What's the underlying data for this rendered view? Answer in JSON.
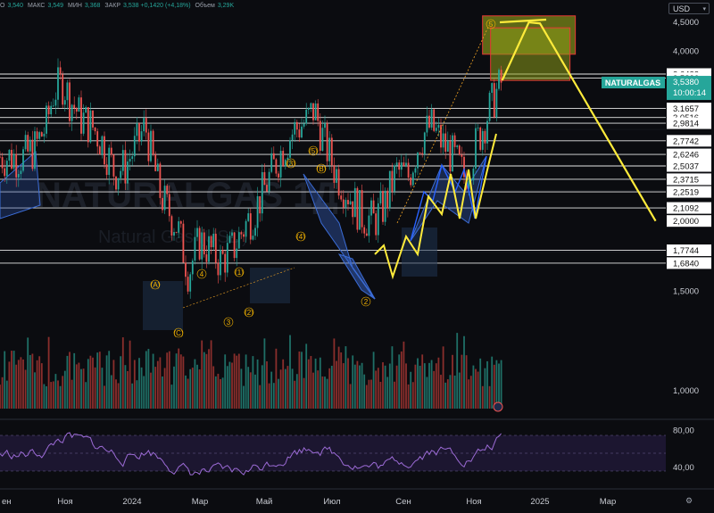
{
  "header": {
    "ohlc": [
      {
        "label": "О",
        "value": "3,540"
      },
      {
        "label": "МАКС",
        "value": "3,549"
      },
      {
        "label": "МИН",
        "value": "3,368"
      },
      {
        "label": "ЗАКР",
        "value": "3,538 +0,1420 (+4,18%)"
      },
      {
        "label": "Объем",
        "value": "3,29K"
      }
    ],
    "currency": "USD",
    "settings_icon": "gear-icon"
  },
  "colors": {
    "background": "#0b0c10",
    "candle_up": "#26a69a",
    "candle_down": "#ef5350",
    "projection": "#ffeb3b",
    "zone_fill": "#8c9a1a",
    "zone_border": "#e53935",
    "wave_label": "#f5b400",
    "rsi_line": "#9c6bd6",
    "price_tag": "#26a69a"
  },
  "chart_data": [
    {
      "type": "candlestick",
      "symbol": "NATURALGAS",
      "watermark": "NATURALGAS 1Д",
      "watermark_sub": "Natural Gas (USD)",
      "x_ticks": [
        "ен",
        "Ноя",
        "2024",
        "Мар",
        "Май",
        "Июл",
        "Сен",
        "Ноя",
        "2025",
        "Мар"
      ],
      "y_ticks": [
        "4,5000",
        "4,0000",
        "1,5000",
        "1,0000"
      ],
      "y_scale": "log",
      "ylim": [
        0.85,
        4.75
      ],
      "key_levels": [
        "3,6432",
        "3,5826",
        "3,1657",
        "3,0516",
        "2,9814",
        "2,7742",
        "2,6246",
        "2,5037",
        "2,3715",
        "2,2519",
        "2,1092",
        "2,0000",
        "1,7744",
        "1,6840"
      ],
      "last_price": "3,5380",
      "last_price_label": "NATURALGAS",
      "countdown": "10:00:14",
      "price_path": [
        [
          "2023-09-25",
          2.6
        ],
        [
          "2023-10-05",
          2.7
        ],
        [
          "2023-10-15",
          2.95
        ],
        [
          "2023-10-22",
          3.4
        ],
        [
          "2023-10-30",
          3.52
        ],
        [
          "2023-11-05",
          3.3
        ],
        [
          "2023-11-15",
          3.05
        ],
        [
          "2023-11-25",
          2.95
        ],
        [
          "2023-12-05",
          2.75
        ],
        [
          "2023-12-15",
          2.45
        ],
        [
          "2023-12-25",
          2.5
        ],
        [
          "2024-01-05",
          2.75
        ],
        [
          "2024-01-12",
          2.95
        ],
        [
          "2024-01-18",
          2.6
        ],
        [
          "2024-01-25",
          2.25
        ],
        [
          "2024-02-01",
          2.1
        ],
        [
          "2024-02-10",
          1.95
        ],
        [
          "2024-02-20",
          1.62
        ],
        [
          "2024-03-01",
          1.85
        ],
        [
          "2024-03-10",
          1.78
        ],
        [
          "2024-03-20",
          1.7
        ],
        [
          "2024-04-01",
          1.8
        ],
        [
          "2024-04-10",
          1.95
        ],
        [
          "2024-04-20",
          2.1
        ],
        [
          "2024-05-01",
          2.35
        ],
        [
          "2024-05-15",
          2.7
        ],
        [
          "2024-05-25",
          2.9
        ],
        [
          "2024-06-05",
          3.0
        ],
        [
          "2024-06-12",
          3.16
        ],
        [
          "2024-06-20",
          2.8
        ],
        [
          "2024-07-01",
          2.45
        ],
        [
          "2024-07-15",
          2.2
        ],
        [
          "2024-07-25",
          2.05
        ],
        [
          "2024-08-05",
          2.0
        ],
        [
          "2024-08-15",
          2.15
        ],
        [
          "2024-08-25",
          2.45
        ],
        [
          "2024-09-05",
          2.4
        ],
        [
          "2024-09-15",
          2.8
        ],
        [
          "2024-09-25",
          2.95
        ],
        [
          "2024-10-05",
          2.75
        ],
        [
          "2024-10-15",
          2.6
        ],
        [
          "2024-10-25",
          2.4
        ],
        [
          "2024-11-05",
          2.75
        ],
        [
          "2024-11-15",
          3.1
        ],
        [
          "2024-11-22",
          3.35
        ],
        [
          "2024-11-28",
          3.538
        ]
      ],
      "projection": [
        [
          "2024-11-28",
          3.55
        ],
        [
          "2024-12-22",
          4.5
        ],
        [
          "2025-01-01",
          4.48
        ],
        [
          "2025-04-15",
          2.0
        ]
      ],
      "wave_labels": [
        "(3)",
        "(5)",
        "(4)",
        "(1)",
        "(2)",
        "(A)",
        "(B)",
        "(C)",
        "5",
        "4",
        "2",
        "3"
      ],
      "rsi_ticks": [
        "80,00",
        "40,00"
      ],
      "rsi_ylim": [
        20,
        92
      ]
    }
  ]
}
